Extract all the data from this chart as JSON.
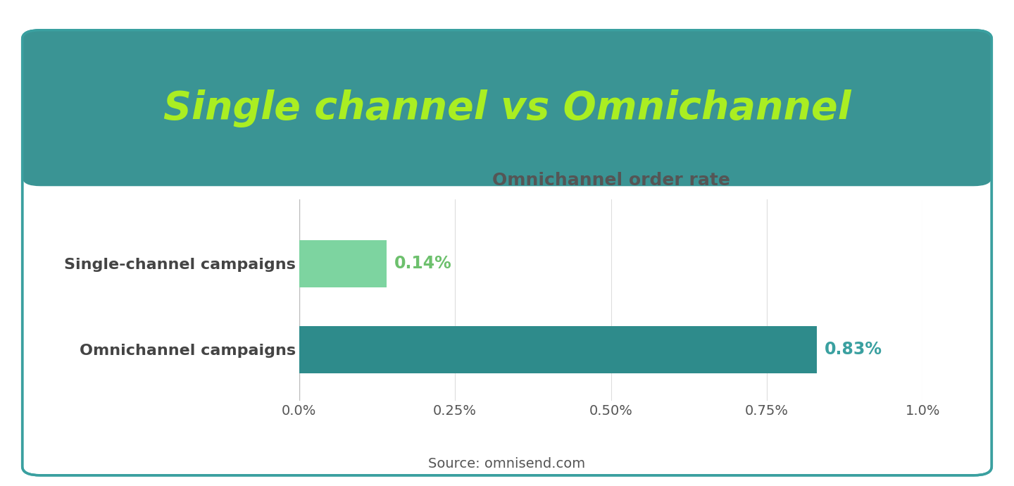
{
  "title": "Single channel vs Omnichannel",
  "subtitle": "Omnichannel order rate",
  "categories": [
    "Single-channel campaigns",
    "Omnichannel campaigns"
  ],
  "values": [
    0.0014,
    0.0083
  ],
  "bar_colors": [
    "#7DD4A0",
    "#2E8B8B"
  ],
  "label_color_single": "#6DC06D",
  "label_color_omni": "#3AA0A0",
  "data_labels": [
    "0.14%",
    "0.83%"
  ],
  "header_bg_color": "#3A9494",
  "title_color": "#AAEE22",
  "title_fontsize": 40,
  "subtitle_color": "#555555",
  "subtitle_fontsize": 18,
  "y_label_fontsize": 16,
  "tick_label_fontsize": 14,
  "bar_label_fontsize": 17,
  "source_text": "Source: omnisend.com",
  "source_fontsize": 14,
  "xlim": [
    0,
    0.01
  ],
  "xticks": [
    0.0,
    0.0025,
    0.005,
    0.0075,
    0.01
  ],
  "xtick_labels": [
    "0.0%",
    "0.25%",
    "0.50%",
    "0.75%",
    "1.0%"
  ],
  "card_edge_color": "#3AA0A0",
  "bar_height": 0.55
}
